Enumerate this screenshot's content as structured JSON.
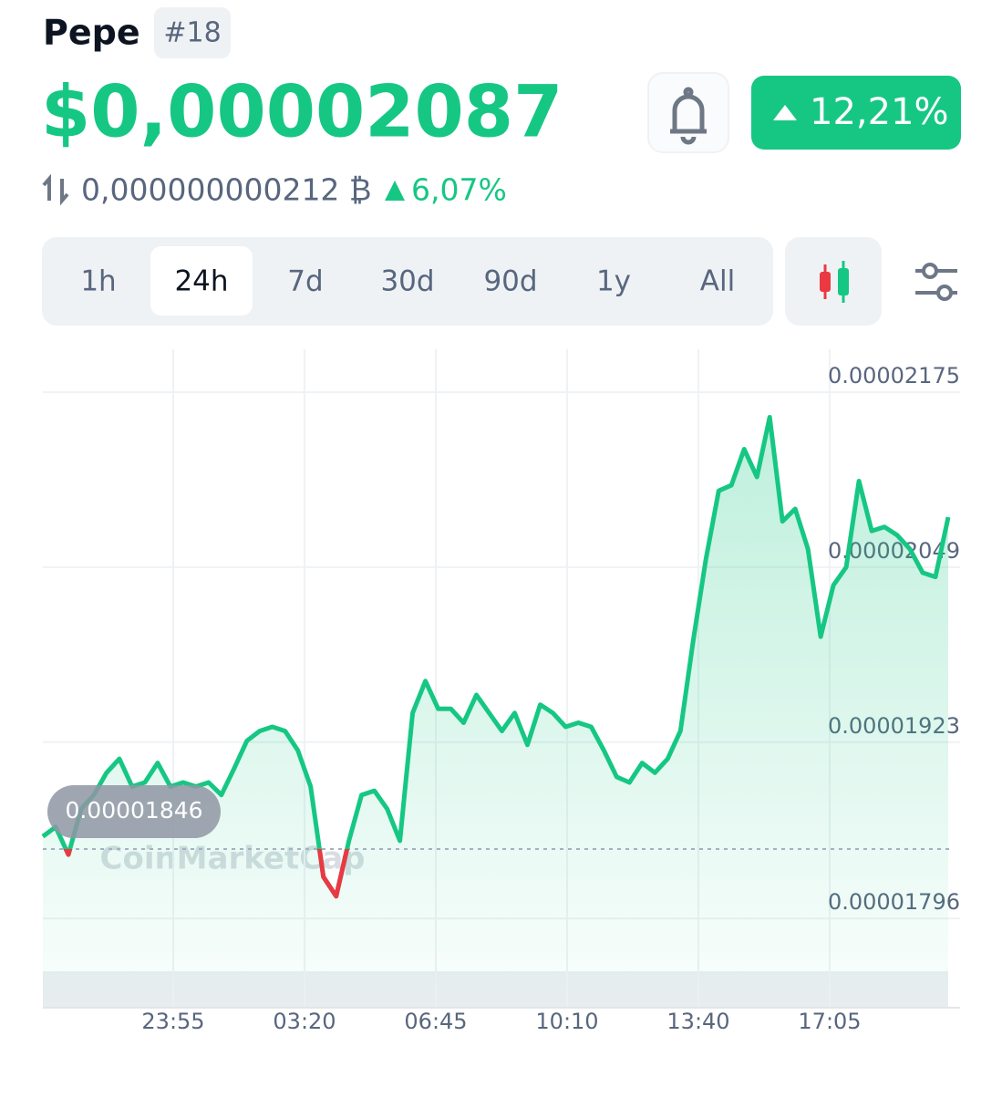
{
  "header": {
    "name": "Pepe",
    "rank": "#18",
    "price": "$0,00002087",
    "change": "12,21%",
    "btc_price": "0,000000000212 ₿",
    "btc_change": "6,07%"
  },
  "tabs": [
    "1h",
    "24h",
    "7d",
    "30d",
    "90d",
    "1y",
    "All"
  ],
  "watermark": "CoinMarketCap",
  "chart_data": {
    "type": "line",
    "series": [
      {
        "color": "#16c784",
        "below_color": "#ea3943",
        "values": [
          1.855e-05,
          1.862e-05,
          1.842e-05,
          1.875e-05,
          1.885e-05,
          1.901e-05,
          1.911e-05,
          1.891e-05,
          1.894e-05,
          1.908e-05,
          1.891e-05,
          1.894e-05,
          1.891e-05,
          1.894e-05,
          1.885e-05,
          1.904e-05,
          1.924e-05,
          1.931e-05,
          1.934e-05,
          1.931e-05,
          1.917e-05,
          1.891e-05,
          1.826e-05,
          1.812e-05,
          1.852e-05,
          1.885e-05,
          1.888e-05,
          1.875e-05,
          1.852e-05,
          1.944e-05,
          1.967e-05,
          1.947e-05,
          1.947e-05,
          1.937e-05,
          1.957e-05,
          1.944e-05,
          1.931e-05,
          1.944e-05,
          1.921e-05,
          1.95e-05,
          1.944e-05,
          1.934e-05,
          1.937e-05,
          1.934e-05,
          1.917e-05,
          1.898e-05,
          1.894e-05,
          1.908e-05,
          1.901e-05,
          1.911e-05,
          1.931e-05,
          1.996e-05,
          2.055e-05,
          2.104e-05,
          2.108e-05,
          2.134e-05,
          2.114e-05,
          2.157e-05,
          2.082e-05,
          2.091e-05,
          2.062e-05,
          1.999e-05,
          2.036e-05,
          2.049e-05,
          2.111e-05,
          2.075e-05,
          2.078e-05,
          2.072e-05,
          2.062e-05,
          2.045e-05,
          2.042e-05,
          2.085e-05
        ]
      }
    ],
    "reference": 1.846e-05,
    "xtick_labels": [
      "23:55",
      "03:20",
      "06:45",
      "10:10",
      "13:40",
      "17:05"
    ],
    "ylim": [
      1.76e-05,
      2.2e-05
    ],
    "yticks": [
      1.796e-05,
      1.923e-05,
      2.049e-05,
      2.175e-05
    ],
    "grid": true
  }
}
